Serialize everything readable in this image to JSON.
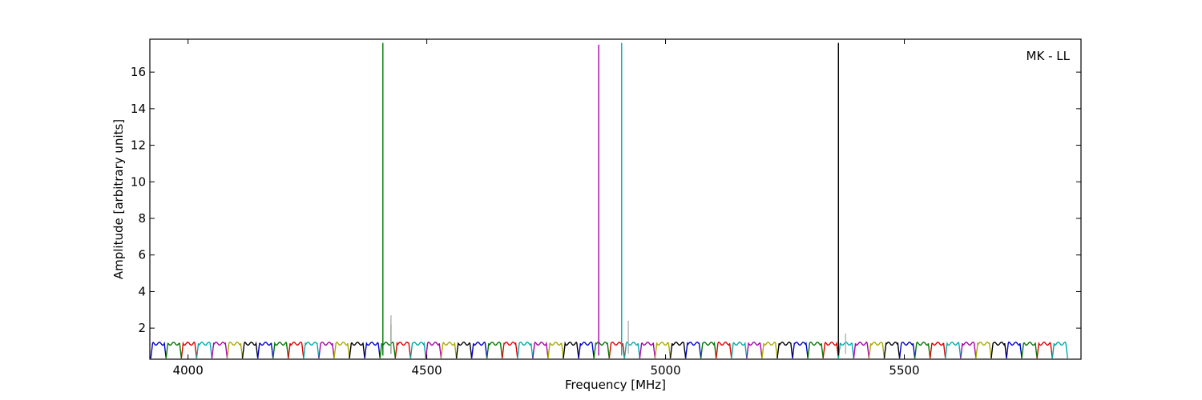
{
  "chart_data": {
    "type": "line",
    "title": "",
    "annotation": "MK - LL",
    "xlabel": "Frequency [MHz]",
    "ylabel": "Amplitude [arbitrary units]",
    "xlim": [
      3920,
      5870
    ],
    "ylim": [
      0.3,
      17.8
    ],
    "xticks": [
      4000,
      4500,
      5000,
      5500
    ],
    "yticks": [
      2,
      4,
      6,
      8,
      10,
      12,
      14,
      16
    ],
    "grid": false,
    "legend": "none",
    "channel": {
      "start_mhz": 3922,
      "width_mhz": 32,
      "count": 60,
      "colors": [
        "#0000cc",
        "#007700",
        "#dd0000",
        "#00aaaa",
        "#aa00aa",
        "#aaaa00",
        "#000000"
      ]
    },
    "spikes": [
      {
        "x": 4408,
        "y": 17.6,
        "color": "#007700"
      },
      {
        "x": 4860,
        "y": 17.5,
        "color": "#aa00aa"
      },
      {
        "x": 4908,
        "y": 17.6,
        "color": "#00aaaa"
      },
      {
        "x": 5362,
        "y": 17.6,
        "color": "#000000"
      }
    ],
    "secondary_spikes": [
      {
        "x": 4425,
        "y": 2.2,
        "color": "#007700"
      },
      {
        "x": 4425,
        "y": 2.7,
        "color": "#aaaaaa"
      },
      {
        "x": 4922,
        "y": 2.4,
        "color": "#aaaaaa"
      },
      {
        "x": 5377,
        "y": 1.7,
        "color": "#aaaaaa"
      }
    ]
  }
}
